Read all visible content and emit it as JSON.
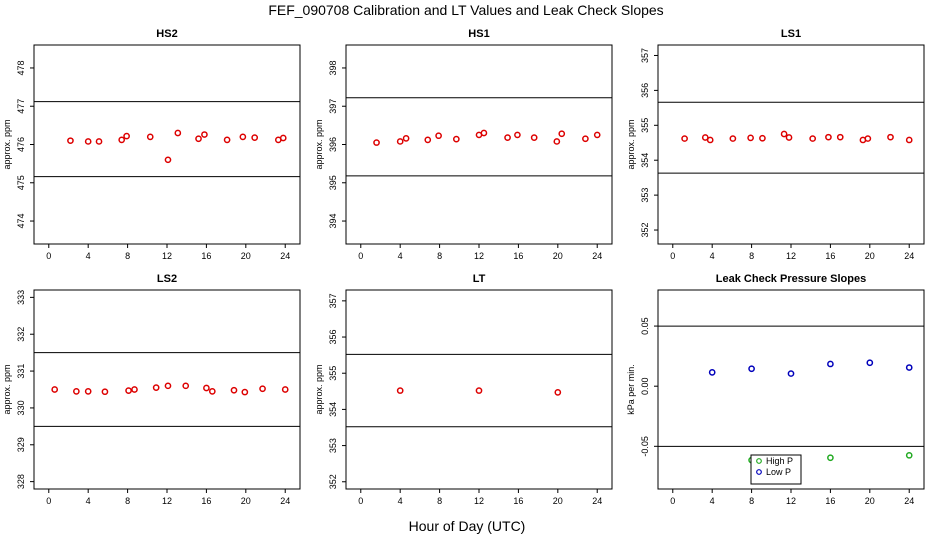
{
  "figure": {
    "title": "FEF_090708  Calibration and LT Values and Leak Check Slopes",
    "xlabel": "Hour of Day (UTC)"
  },
  "colors": {
    "calibration_points": "#dd0000",
    "high_p": "#22aa22",
    "low_p": "#0000bb",
    "axis": "#000000"
  },
  "chart_data": [
    {
      "type": "scatter",
      "title": "HS2",
      "ylabel": "approx. ppm",
      "xlim": [
        -1.5,
        25.5
      ],
      "ylim": [
        473.4,
        478.6
      ],
      "xticks": [
        0,
        4,
        8,
        12,
        16,
        20,
        24
      ],
      "yticks": [
        474,
        475,
        476,
        477,
        478
      ],
      "hlines": [
        475.16,
        477.12
      ],
      "series": [
        {
          "name": "HS2",
          "color": "#dd0000",
          "x": [
            2.2,
            4.0,
            5.1,
            7.4,
            7.9,
            10.3,
            12.1,
            13.1,
            15.2,
            15.8,
            18.1,
            19.7,
            20.9,
            23.3,
            23.8
          ],
          "y": [
            476.1,
            476.08,
            476.08,
            476.12,
            476.22,
            476.2,
            475.6,
            476.3,
            476.15,
            476.26,
            476.12,
            476.2,
            476.18,
            476.12,
            476.17
          ]
        }
      ]
    },
    {
      "type": "scatter",
      "title": "HS1",
      "ylabel": "approx. ppm",
      "xlim": [
        -1.5,
        25.5
      ],
      "ylim": [
        393.4,
        398.6
      ],
      "xticks": [
        0,
        4,
        8,
        12,
        16,
        20,
        24
      ],
      "yticks": [
        394,
        395,
        396,
        397,
        398
      ],
      "hlines": [
        395.18,
        397.22
      ],
      "series": [
        {
          "name": "HS1",
          "color": "#dd0000",
          "x": [
            1.6,
            4.0,
            4.6,
            6.8,
            7.9,
            9.7,
            12.0,
            12.5,
            14.9,
            15.9,
            17.6,
            19.9,
            20.4,
            22.8,
            24.0
          ],
          "y": [
            396.05,
            396.08,
            396.16,
            396.12,
            396.23,
            396.14,
            396.25,
            396.3,
            396.18,
            396.25,
            396.18,
            396.08,
            396.28,
            396.15,
            396.25
          ]
        }
      ]
    },
    {
      "type": "scatter",
      "title": "LS1",
      "ylabel": "approx. ppm",
      "xlim": [
        -1.5,
        25.5
      ],
      "ylim": [
        351.6,
        357.3
      ],
      "xticks": [
        0,
        4,
        8,
        12,
        16,
        20,
        24
      ],
      "yticks": [
        352,
        353,
        354,
        355,
        356,
        357
      ],
      "hlines": [
        353.63,
        355.66
      ],
      "series": [
        {
          "name": "LS1",
          "color": "#dd0000",
          "x": [
            1.2,
            3.3,
            3.8,
            6.1,
            7.9,
            9.1,
            11.3,
            11.8,
            14.2,
            15.8,
            17.0,
            19.3,
            19.8,
            22.1,
            24.0
          ],
          "y": [
            354.62,
            354.65,
            354.58,
            354.62,
            354.64,
            354.63,
            354.75,
            354.65,
            354.62,
            354.66,
            354.66,
            354.58,
            354.62,
            354.66,
            354.58
          ]
        }
      ]
    },
    {
      "type": "scatter",
      "title": "LS2",
      "ylabel": "approx. ppm",
      "xlim": [
        -1.5,
        25.5
      ],
      "ylim": [
        327.8,
        333.2
      ],
      "xticks": [
        0,
        4,
        8,
        12,
        16,
        20,
        24
      ],
      "yticks": [
        328,
        329,
        330,
        331,
        332,
        333
      ],
      "hlines": [
        329.5,
        331.5
      ],
      "series": [
        {
          "name": "LS2",
          "color": "#dd0000",
          "x": [
            0.6,
            2.8,
            4.0,
            5.7,
            8.1,
            8.7,
            10.9,
            12.1,
            13.9,
            16.0,
            16.6,
            18.8,
            19.9,
            21.7,
            24.0
          ],
          "y": [
            330.5,
            330.45,
            330.45,
            330.44,
            330.47,
            330.5,
            330.55,
            330.6,
            330.6,
            330.54,
            330.45,
            330.48,
            330.43,
            330.52,
            330.5
          ]
        }
      ]
    },
    {
      "type": "scatter",
      "title": "LT",
      "ylabel": "approx. ppm",
      "xlim": [
        -1.5,
        25.5
      ],
      "ylim": [
        351.8,
        357.3
      ],
      "xticks": [
        0,
        4,
        8,
        12,
        16,
        20,
        24
      ],
      "yticks": [
        352,
        353,
        354,
        355,
        356,
        357
      ],
      "hlines": [
        353.52,
        355.52
      ],
      "series": [
        {
          "name": "LT",
          "color": "#dd0000",
          "x": [
            4.0,
            12.0,
            20.0
          ],
          "y": [
            354.52,
            354.52,
            354.47
          ]
        }
      ]
    },
    {
      "type": "scatter",
      "title": "Leak Check Pressure Slopes",
      "ylabel": "kPa per min.",
      "xlim": [
        -1.5,
        25.5
      ],
      "ylim": [
        -0.0855,
        0.08
      ],
      "xticks": [
        0,
        4,
        8,
        12,
        16,
        20,
        24
      ],
      "yticks": [
        -0.05,
        0.0,
        0.05
      ],
      "ytick_labels": [
        "-0.05",
        "0.00",
        "0.05"
      ],
      "hlines": [
        -0.05,
        0.05
      ],
      "legend": {
        "position": "bottom-center",
        "entries": [
          "High P",
          "Low P"
        ]
      },
      "series": [
        {
          "name": "High P",
          "color": "#22aa22",
          "x": [
            8.0,
            16.0,
            24.0
          ],
          "y": [
            -0.0615,
            -0.0595,
            -0.0575
          ]
        },
        {
          "name": "Low P",
          "color": "#0000bb",
          "x": [
            4.0,
            8.0,
            12.0,
            16.0,
            20.0,
            24.0
          ],
          "y": [
            0.0115,
            0.0145,
            0.0105,
            0.0185,
            0.0195,
            0.0155
          ]
        }
      ]
    }
  ]
}
